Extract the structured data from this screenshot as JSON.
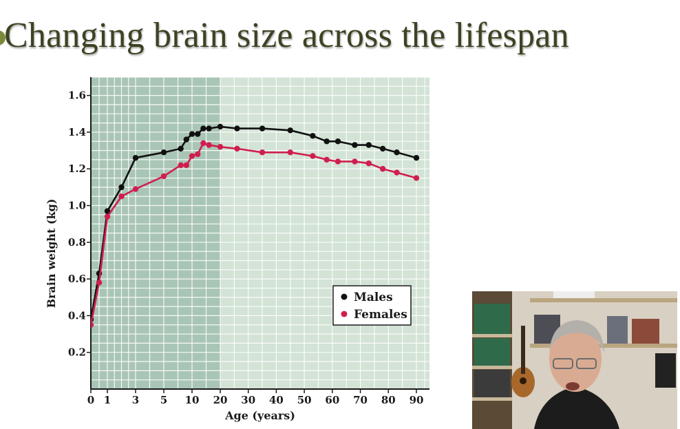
{
  "slide": {
    "title": "Changing brain size across the lifespan"
  },
  "chart_data": {
    "type": "line",
    "title": "",
    "xlabel": "Age (years)",
    "ylabel": "Brain weight (kg)",
    "ylim": [
      0,
      1.7
    ],
    "yticks": [
      0.2,
      0.4,
      0.6,
      0.8,
      1.0,
      1.2,
      1.4,
      1.6
    ],
    "ytick_labels": [
      "0.2",
      "0.4",
      "0.6",
      "0.8",
      "1.0",
      "1.2",
      "1.4",
      "1.6"
    ],
    "xticks": [
      0,
      1,
      3,
      5,
      10,
      20,
      30,
      40,
      50,
      60,
      70,
      80,
      90
    ],
    "xtick_labels": [
      "0",
      "1",
      "3",
      "5",
      "10",
      "20",
      "30",
      "40",
      "50",
      "60",
      "70",
      "80",
      "90"
    ],
    "x_scale": "piecewise: years 0-3 expanded, 3-20 compressed, 20-90 linear",
    "grid": true,
    "legend": "lower-right",
    "background": {
      "early_life_color": "#a9c5b5",
      "adult_color": "#d3e3d6",
      "shade_boundary_age": 20
    },
    "series": [
      {
        "name": "Males",
        "color": "#111111",
        "x": [
          0,
          0.5,
          1,
          2,
          3,
          5,
          8,
          9,
          10,
          12,
          14,
          16,
          20,
          26,
          35,
          45,
          53,
          58,
          62,
          68,
          73,
          78,
          83,
          90
        ],
        "y": [
          0.38,
          0.63,
          0.97,
          1.1,
          1.26,
          1.29,
          1.31,
          1.36,
          1.39,
          1.39,
          1.42,
          1.42,
          1.43,
          1.42,
          1.42,
          1.41,
          1.38,
          1.35,
          1.35,
          1.33,
          1.33,
          1.31,
          1.29,
          1.26
        ]
      },
      {
        "name": "Females",
        "color": "#d01e4e",
        "x": [
          0,
          0.5,
          1,
          2,
          3,
          5,
          8,
          9,
          10,
          12,
          14,
          16,
          20,
          26,
          35,
          45,
          53,
          58,
          62,
          68,
          73,
          78,
          83,
          90
        ],
        "y": [
          0.35,
          0.58,
          0.94,
          1.05,
          1.09,
          1.16,
          1.22,
          1.22,
          1.27,
          1.28,
          1.34,
          1.33,
          1.32,
          1.31,
          1.29,
          1.29,
          1.27,
          1.25,
          1.24,
          1.24,
          1.23,
          1.2,
          1.18,
          1.15
        ]
      }
    ]
  },
  "webcam": {
    "icon": "presenter-video-icon"
  }
}
